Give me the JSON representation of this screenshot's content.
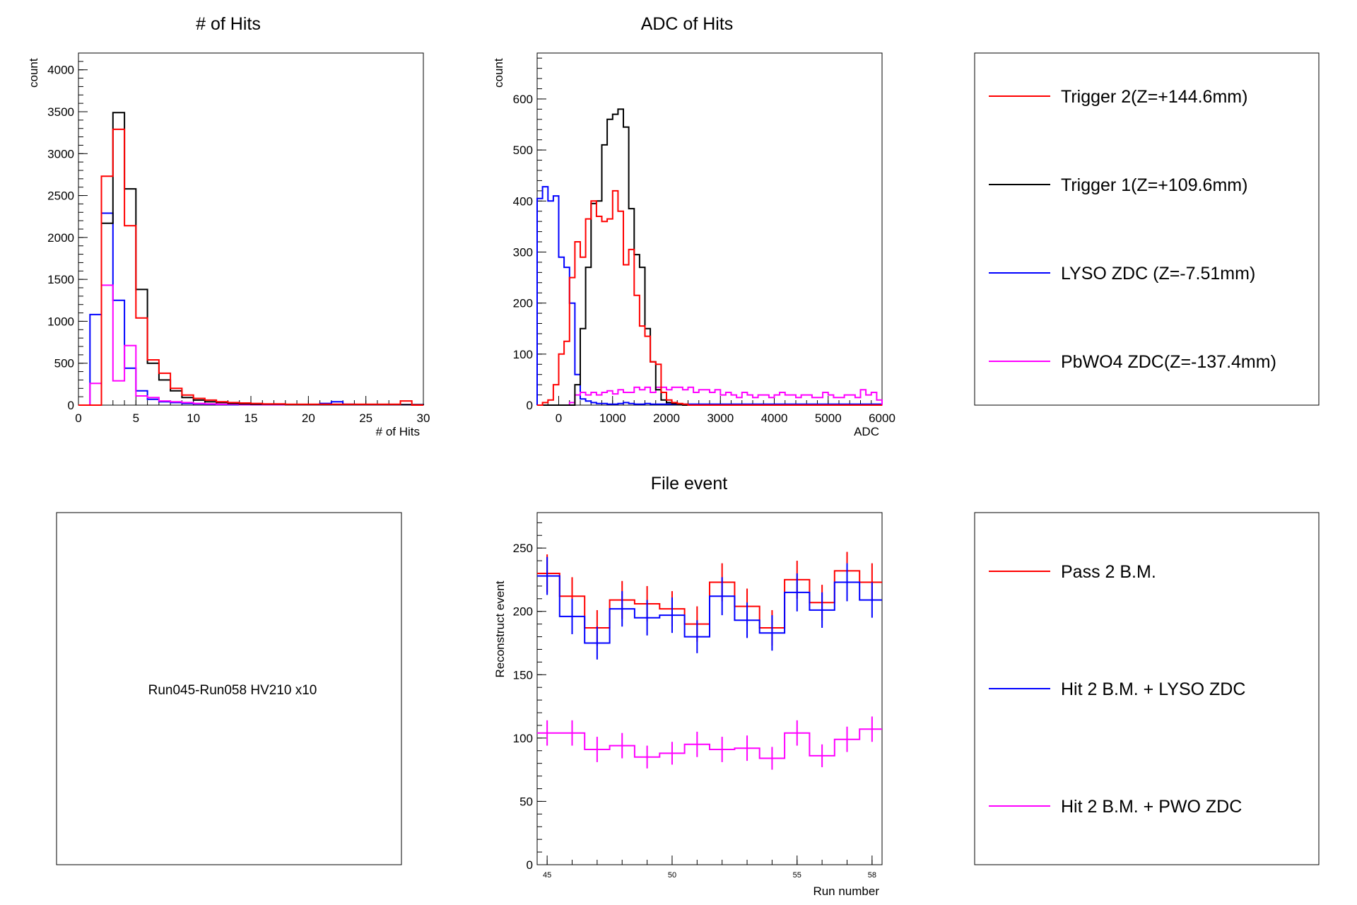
{
  "charts": [
    {
      "id": "hits",
      "type": "histogram",
      "title": "# of Hits",
      "xlabel": "# of Hits",
      "ylabel": "count",
      "xlim": [
        0,
        30
      ],
      "ylim": [
        0,
        4200
      ],
      "xticks": [
        0,
        5,
        10,
        15,
        20,
        25,
        30
      ],
      "yticks": [
        0,
        500,
        1000,
        1500,
        2000,
        2500,
        3000,
        3500,
        4000
      ],
      "binEdges": [
        0,
        1,
        2,
        3,
        4,
        5,
        6,
        7,
        8,
        9,
        10,
        11,
        12,
        13,
        14,
        15,
        16,
        17,
        18,
        19,
        20,
        21,
        22,
        23,
        24,
        25,
        26,
        27,
        28,
        29,
        30
      ],
      "series": [
        {
          "color": "#0000ff",
          "values": [
            0,
            1080,
            2290,
            1250,
            440,
            170,
            70,
            40,
            30,
            20,
            15,
            10,
            8,
            5,
            5,
            5,
            5,
            5,
            5,
            5,
            5,
            20,
            40,
            10,
            5,
            5,
            5,
            5,
            5,
            5
          ]
        },
        {
          "color": "#ff00ff",
          "values": [
            0,
            260,
            1430,
            290,
            710,
            110,
            90,
            50,
            40,
            30,
            20,
            15,
            10,
            10,
            5,
            5,
            5,
            5,
            5,
            5,
            5,
            5,
            5,
            5,
            5,
            5,
            5,
            5,
            5,
            5
          ]
        },
        {
          "color": "#000000",
          "values": [
            0,
            0,
            2170,
            3490,
            2580,
            1380,
            500,
            300,
            170,
            90,
            60,
            40,
            30,
            20,
            15,
            10,
            10,
            10,
            5,
            5,
            5,
            5,
            5,
            5,
            5,
            5,
            5,
            5,
            5,
            5
          ]
        },
        {
          "color": "#ff0000",
          "values": [
            0,
            0,
            2730,
            3290,
            2140,
            1040,
            540,
            380,
            200,
            120,
            80,
            60,
            40,
            30,
            25,
            20,
            15,
            15,
            10,
            10,
            10,
            10,
            10,
            10,
            10,
            10,
            10,
            10,
            50,
            0
          ]
        }
      ]
    },
    {
      "id": "adc",
      "type": "histogram",
      "title": "ADC of Hits",
      "xlabel": "ADC",
      "ylabel": "count",
      "xlim": [
        -400,
        6000
      ],
      "ylim": [
        0,
        690
      ],
      "xticks": [
        0,
        1000,
        2000,
        3000,
        4000,
        5000,
        6000
      ],
      "yticks": [
        0,
        100,
        200,
        300,
        400,
        500,
        600
      ],
      "binWidth": 100,
      "series": [
        {
          "color": "#0000ff",
          "values": [
            405,
            428,
            400,
            410,
            290,
            270,
            200,
            60,
            12,
            8,
            5,
            3,
            3,
            2,
            2,
            3,
            5,
            3,
            2,
            2,
            3,
            2,
            2,
            2,
            2,
            2,
            2,
            2,
            2,
            2,
            2,
            2,
            2,
            2,
            2,
            2,
            2,
            2,
            2,
            2,
            2,
            2,
            2,
            2,
            2,
            2,
            2,
            2,
            2,
            2,
            2,
            2,
            2,
            2,
            2,
            2,
            2,
            2,
            2,
            2,
            2,
            2,
            2,
            2
          ]
        },
        {
          "color": "#ff00ff",
          "values": [
            0,
            0,
            0,
            0,
            0,
            0,
            5,
            20,
            25,
            20,
            25,
            20,
            25,
            28,
            22,
            30,
            25,
            25,
            35,
            30,
            35,
            25,
            35,
            35,
            30,
            35,
            35,
            30,
            35,
            25,
            30,
            30,
            25,
            30,
            20,
            25,
            20,
            15,
            25,
            20,
            15,
            20,
            20,
            15,
            20,
            25,
            20,
            20,
            15,
            20,
            20,
            15,
            15,
            25,
            20,
            15,
            15,
            20,
            20,
            15,
            30,
            20,
            25,
            10
          ]
        },
        {
          "color": "#000000",
          "values": [
            0,
            0,
            0,
            0,
            0,
            0,
            0,
            40,
            150,
            270,
            395,
            400,
            510,
            560,
            570,
            580,
            545,
            385,
            295,
            270,
            150,
            85,
            30,
            10,
            5,
            3,
            2,
            0,
            0,
            0,
            0,
            0,
            0,
            0,
            0,
            0,
            0,
            0,
            0,
            0,
            0,
            0,
            0,
            0,
            0,
            0,
            0,
            0,
            0,
            0,
            0,
            0,
            0,
            0,
            0,
            0,
            0,
            0,
            0,
            0,
            0,
            0,
            0,
            0
          ]
        },
        {
          "color": "#ff0000",
          "values": [
            0,
            5,
            10,
            40,
            100,
            125,
            250,
            320,
            290,
            365,
            400,
            370,
            360,
            365,
            420,
            380,
            275,
            305,
            215,
            155,
            135,
            85,
            80,
            25,
            10,
            5,
            3,
            2,
            0,
            0,
            0,
            0,
            0,
            0,
            0,
            0,
            0,
            0,
            0,
            0,
            0,
            0,
            0,
            0,
            0,
            0,
            0,
            0,
            0,
            0,
            0,
            0,
            0,
            0,
            0,
            0,
            0,
            0,
            0,
            0,
            0,
            0,
            0,
            0
          ]
        }
      ]
    },
    {
      "id": "file-event",
      "type": "histogram-errorbars",
      "title": "File event",
      "xlabel": "Run number",
      "ylabel": "Reconstruct event",
      "xlim": [
        44.6,
        58.4
      ],
      "ylim": [
        0,
        278
      ],
      "xticks": [
        45,
        50,
        55,
        58
      ],
      "yticks": [
        0,
        50,
        100,
        150,
        200,
        250
      ],
      "runs": [
        45,
        46,
        47,
        48,
        49,
        50,
        51,
        52,
        53,
        54,
        55,
        56,
        57,
        58
      ],
      "series": [
        {
          "color": "#ff0000",
          "values": [
            230,
            212,
            187,
            209,
            206,
            202,
            190,
            223,
            204,
            187,
            225,
            207,
            232,
            223
          ],
          "errors": [
            15,
            15,
            14,
            15,
            14,
            14,
            14,
            15,
            14,
            14,
            15,
            14,
            15,
            15
          ]
        },
        {
          "color": "#0000ff",
          "values": [
            228,
            196,
            175,
            202,
            195,
            197,
            180,
            212,
            193,
            183,
            215,
            201,
            223,
            209
          ],
          "errors": [
            15,
            14,
            13,
            14,
            14,
            14,
            13,
            15,
            14,
            14,
            15,
            14,
            15,
            14
          ]
        },
        {
          "color": "#ff00ff",
          "values": [
            104,
            104,
            91,
            94,
            85,
            88,
            95,
            91,
            92,
            84,
            104,
            86,
            99,
            107
          ],
          "errors": [
            10,
            10,
            10,
            10,
            9,
            9,
            10,
            10,
            10,
            9,
            10,
            9,
            10,
            10
          ]
        }
      ]
    }
  ],
  "legend_top": [
    {
      "label": "Trigger 2(Z=+144.6mm)",
      "color": "#ff0000"
    },
    {
      "label": "Trigger 1(Z=+109.6mm)",
      "color": "#000000"
    },
    {
      "label": "LYSO ZDC (Z=-7.51mm)",
      "color": "#0000ff"
    },
    {
      "label": "PbWO4 ZDC(Z=-137.4mm)",
      "color": "#ff00ff"
    }
  ],
  "legend_bottom": [
    {
      "label": "Pass 2 B.M.",
      "color": "#ff0000"
    },
    {
      "label": "Hit 2 B.M. + LYSO ZDC",
      "color": "#0000ff"
    },
    {
      "label": "Hit 2 B.M. + PWO ZDC",
      "color": "#ff00ff"
    }
  ],
  "info_text": "Run045-Run058 HV210 x10"
}
